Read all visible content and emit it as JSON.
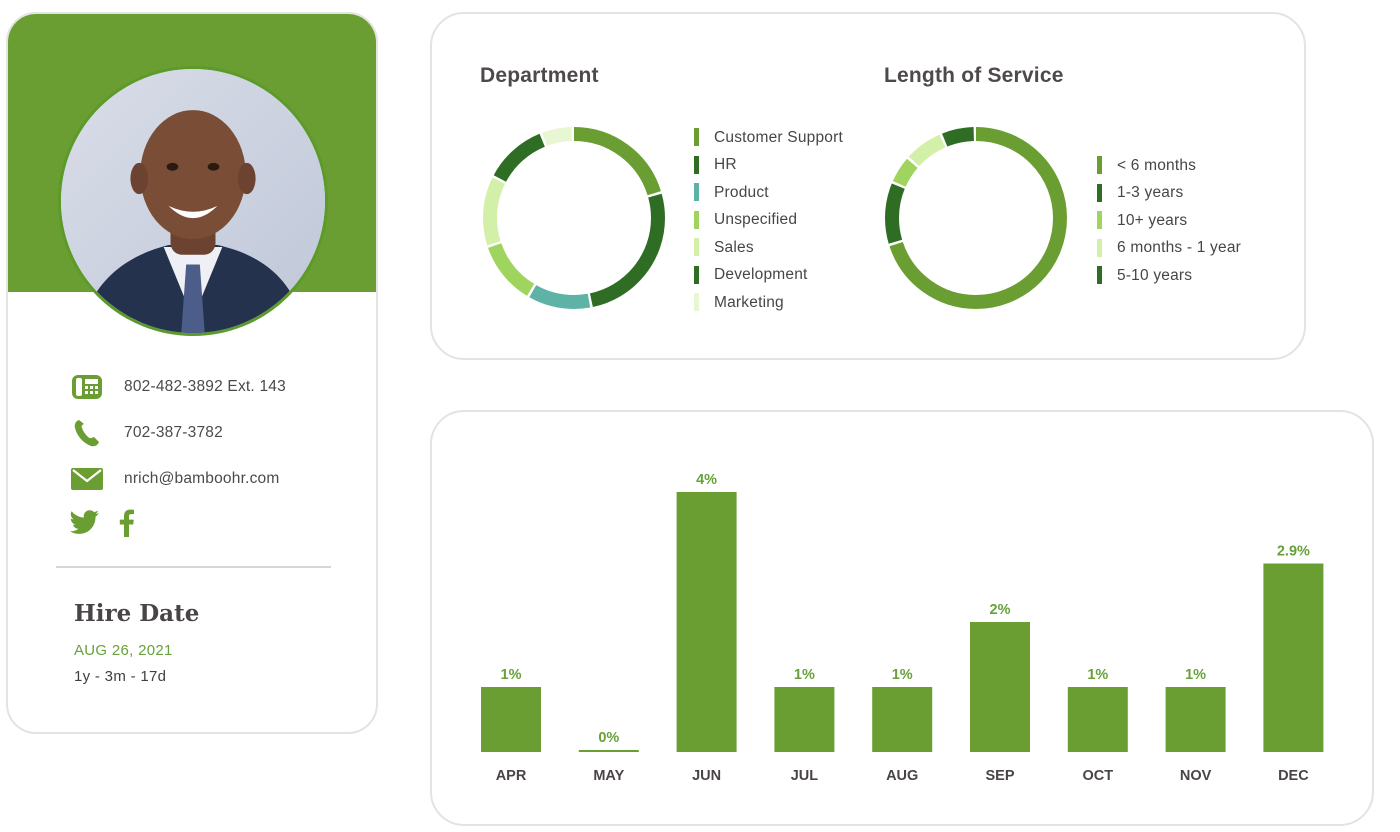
{
  "colors": {
    "brand_green": "#6a9e32",
    "dark_green": "#2f6d24",
    "teal": "#5fb3a6",
    "light_green": "#9fd45f",
    "pale_green": "#d3f0a8",
    "very_pale_green": "#e8f6d3",
    "label_green": "#67a13a"
  },
  "profile": {
    "avatar_alt": "employee photo",
    "contacts": [
      {
        "type": "office-phone",
        "icon": "desk-phone-icon",
        "value": "802-482-3892 Ext. 143"
      },
      {
        "type": "mobile-phone",
        "icon": "phone-icon",
        "value": "702-387-3782"
      },
      {
        "type": "email",
        "icon": "mail-icon",
        "value": "nrich@bamboohr.com"
      }
    ],
    "social": [
      {
        "icon": "twitter-icon"
      },
      {
        "icon": "facebook-icon"
      }
    ],
    "hire": {
      "title": "Hire Date",
      "date": "AUG 26, 2021",
      "tenure": "1y - 3m - 17d"
    }
  },
  "donuts": {
    "department": {
      "title": "Department",
      "slices": [
        {
          "label": "Customer Support",
          "value": 18,
          "color": "#6a9e32"
        },
        {
          "label": "HR",
          "value": 23,
          "color": "#2f6d24"
        },
        {
          "label": "Product",
          "value": 10,
          "color": "#5fb3a6"
        },
        {
          "label": "Unspecified",
          "value": 10,
          "color": "#9fd45f"
        },
        {
          "label": "Sales",
          "value": 11,
          "color": "#d3f0a8"
        },
        {
          "label": "Development",
          "value": 10,
          "color": "#2f6d24"
        },
        {
          "label": "Marketing",
          "value": 5,
          "color": "#e8f6d3"
        }
      ]
    },
    "length_of_service": {
      "title": "Length of Service",
      "slices": [
        {
          "label": "< 6 months",
          "value": 69,
          "color": "#6a9e32"
        },
        {
          "label": "1-3 years",
          "value": 11,
          "color": "#2f6d24"
        },
        {
          "label": "10+ years",
          "value": 5,
          "color": "#9fd45f"
        },
        {
          "label": "6 months - 1 year",
          "value": 7,
          "color": "#d3f0a8"
        },
        {
          "label": "5-10 years",
          "value": 6,
          "color": "#2f6d24"
        }
      ]
    }
  },
  "chart_data": {
    "type": "bar",
    "categories": [
      "APR",
      "MAY",
      "JUN",
      "JUL",
      "AUG",
      "SEP",
      "OCT",
      "NOV",
      "DEC"
    ],
    "values": [
      1,
      0,
      4,
      1,
      1,
      2,
      1,
      1,
      2.9
    ],
    "data_labels": [
      "1%",
      "0%",
      "4%",
      "1%",
      "1%",
      "2%",
      "1%",
      "1%",
      "2.9%"
    ],
    "ylim": [
      0,
      4
    ],
    "grid": false,
    "bar_color": "#6a9e32",
    "label_color": "#67a13a"
  }
}
